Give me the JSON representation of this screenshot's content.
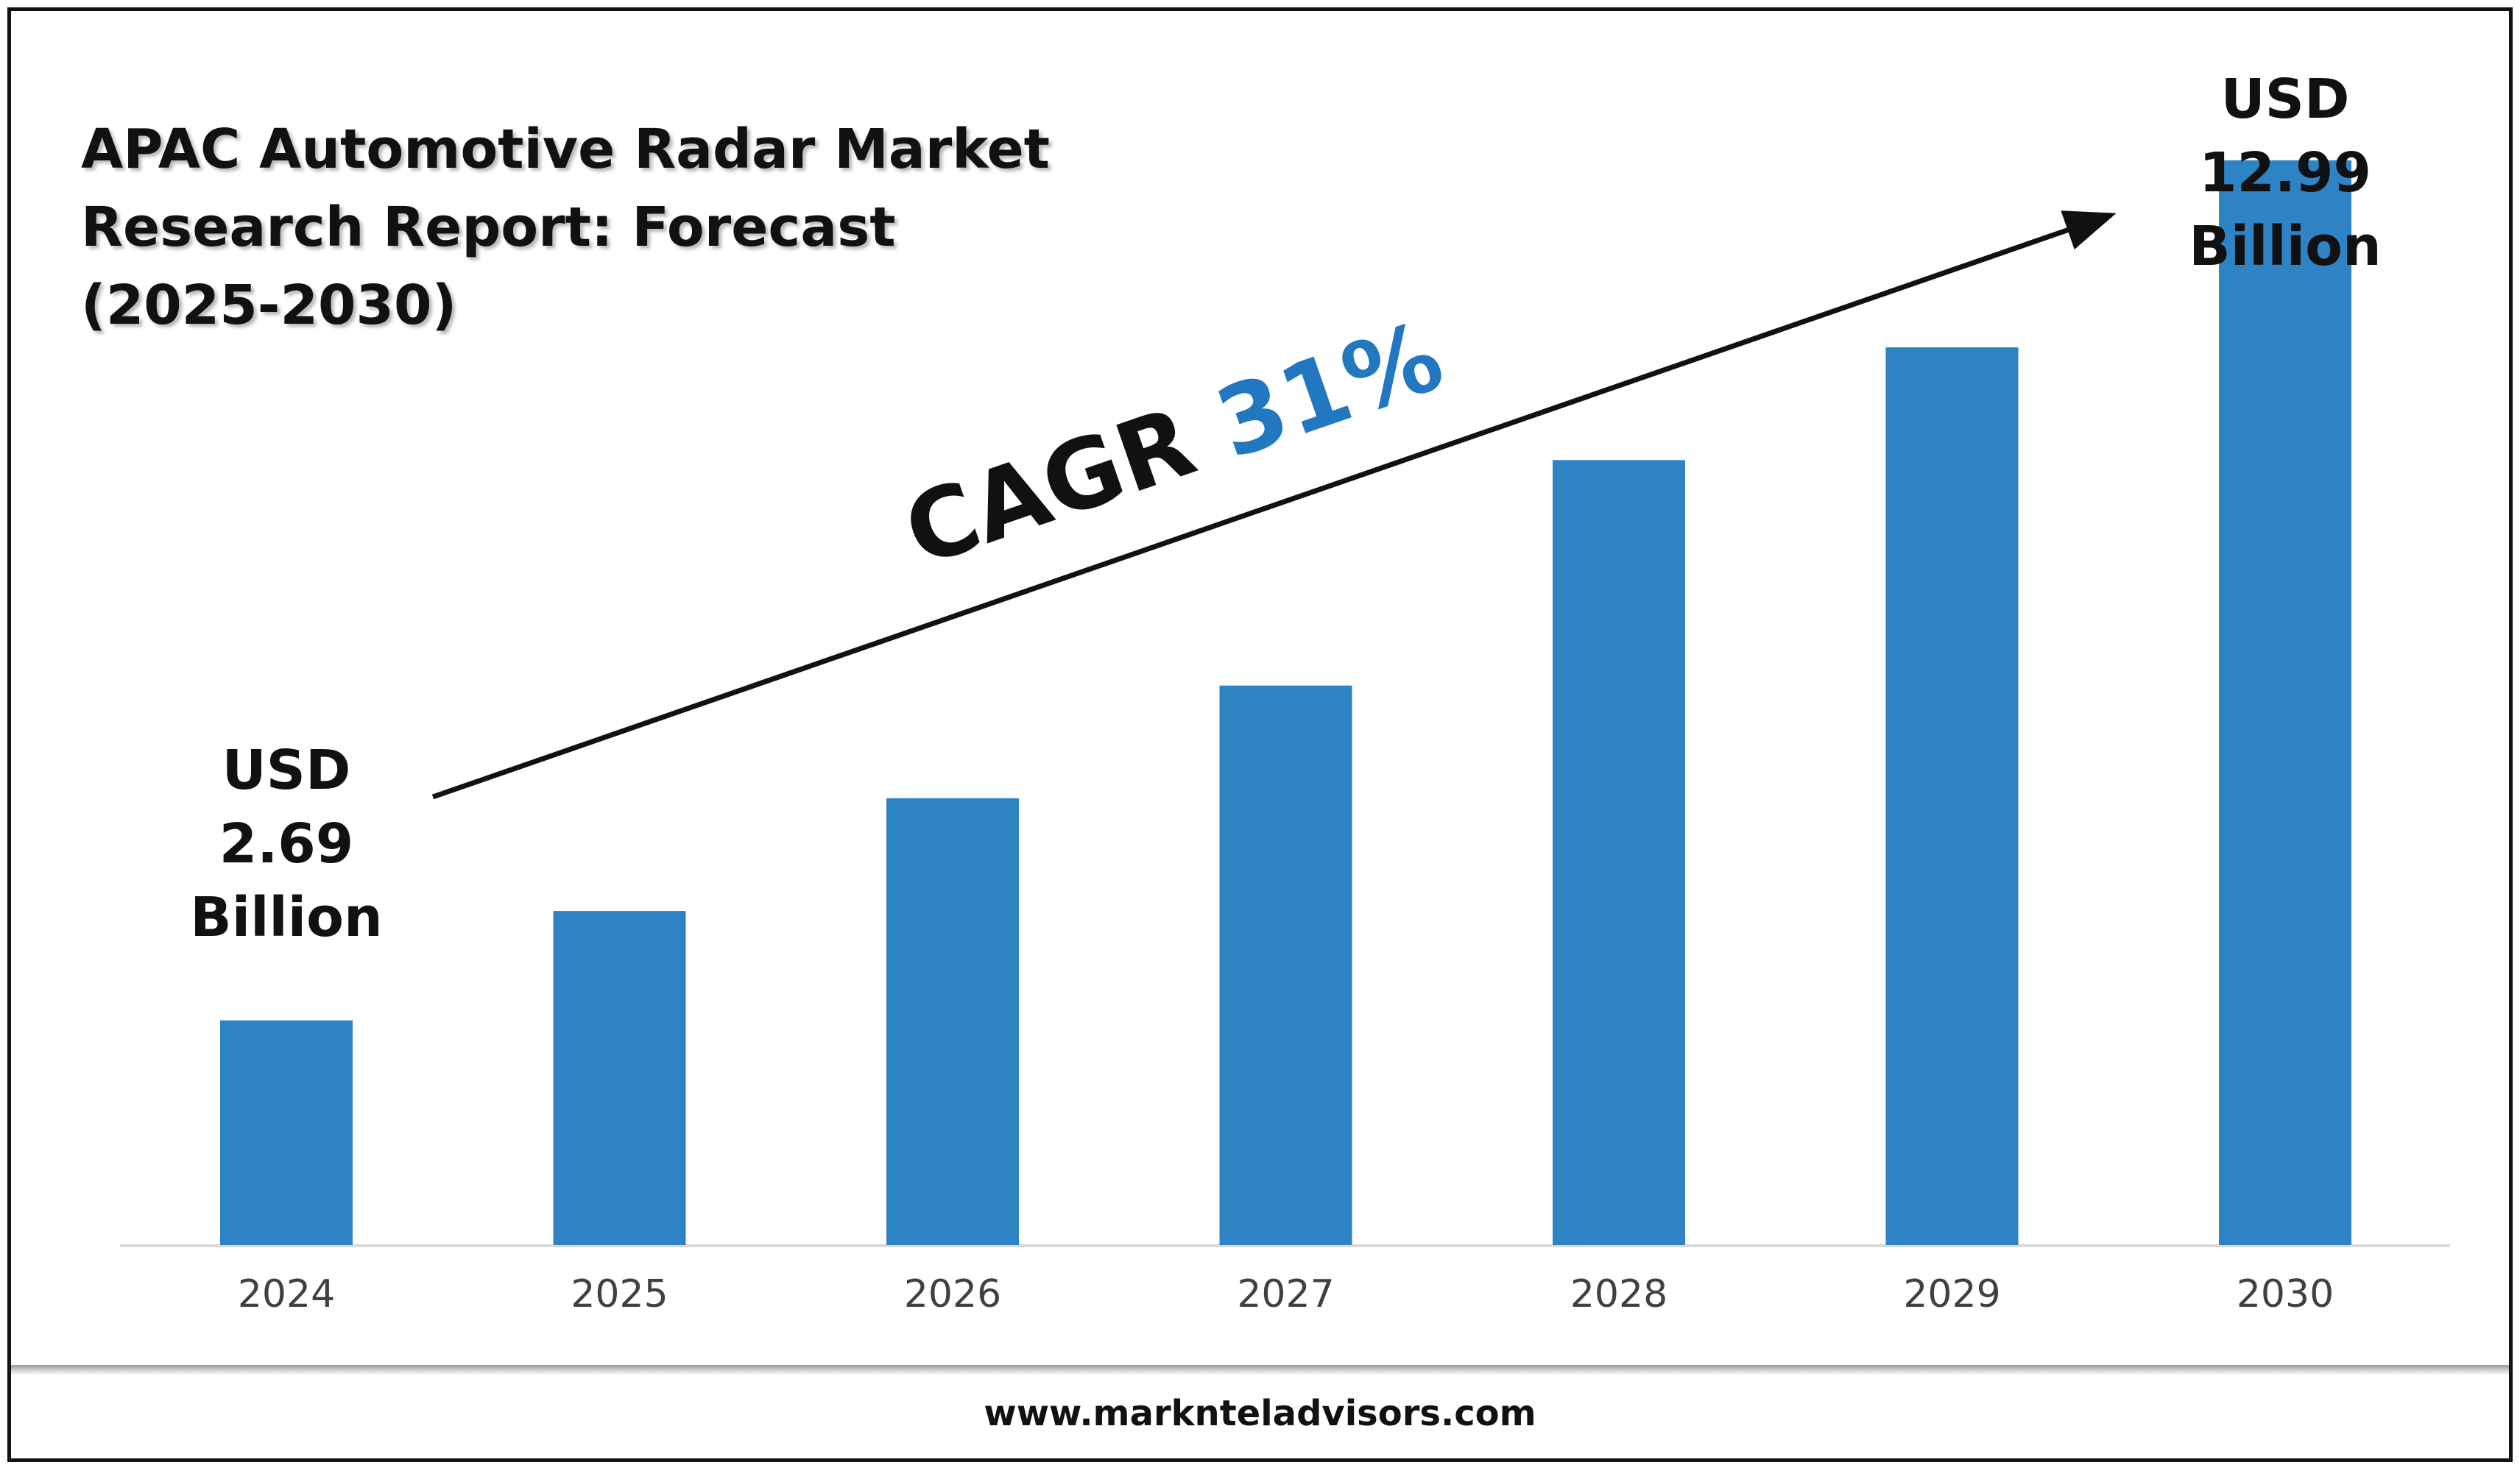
{
  "title_lines": [
    "APAC Automotive Radar Market",
    "Research Report: Forecast",
    "(2025-2030)"
  ],
  "website": "www.marknteladvisors.com",
  "colors": {
    "bar": "#2e83c4",
    "cagr_value": "#2278c0",
    "text": "#111111",
    "axis": "#d9d9d9",
    "tick": "#404040"
  },
  "chart_data": {
    "type": "bar",
    "categories": [
      "2024",
      "2025",
      "2026",
      "2027",
      "2028",
      "2029",
      "2030"
    ],
    "values": [
      2.69,
      4.0,
      5.35,
      6.7,
      9.4,
      10.75,
      12.99
    ],
    "ylim": [
      0,
      13.5
    ],
    "grid": false,
    "annotations": {
      "start": {
        "lines": [
          "USD",
          "2.69",
          "Billion"
        ]
      },
      "end": {
        "lines": [
          "USD",
          "12.99",
          "Billion"
        ]
      },
      "cagr": {
        "label": "CAGR",
        "value": "31%"
      }
    }
  }
}
